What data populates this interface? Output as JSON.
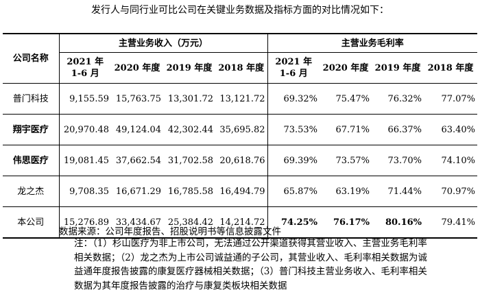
{
  "intro": "发行人与同行业可比公司在关键业务数据及指标方面的对比情况如下：",
  "table": {
    "company_header": "公司名称",
    "revenue_group": "主营业务收入（万元）",
    "margin_group": "主营业务毛利率",
    "periods": [
      "2021 年 1-6 月",
      "2020 年度",
      "2019 年度",
      "2018 年度"
    ],
    "rows": [
      {
        "name": "普门科技",
        "revenue": [
          "9,155.59",
          "15,763.75",
          "13,301.72",
          "13,121.72"
        ],
        "margin": [
          "69.32%",
          "75.47%",
          "76.32%",
          "77.07%"
        ]
      },
      {
        "name": "翔宇医疗",
        "revenue": [
          "20,970.48",
          "49,124.04",
          "42,302.44",
          "35,695.82"
        ],
        "margin": [
          "73.53%",
          "67.71%",
          "66.37%",
          "63.40%"
        ]
      },
      {
        "name": "伟思医疗",
        "revenue": [
          "19,081.45",
          "37,662.54",
          "31,702.58",
          "20,618.76"
        ],
        "margin": [
          "69.39%",
          "73.57%",
          "73.70%",
          "74.10%"
        ]
      },
      {
        "name": "龙之杰",
        "revenue": [
          "9,708.35",
          "16,671.29",
          "16,785.58",
          "16,494.79"
        ],
        "margin": [
          "65.87%",
          "63.19%",
          "71.44%",
          "70.97%"
        ]
      },
      {
        "name": "本公司",
        "revenue": [
          "15,276.89",
          "33,434.67",
          "25,384.42",
          "14,214.72"
        ],
        "margin": [
          "74.25%",
          "76.17%",
          "80.16%",
          "79.41%"
        ]
      }
    ]
  },
  "notes": {
    "source": "数据来源：公司年度报告、招股说明书等信息披露文件",
    "body": "注：（1）杉山医疗为非上市公司，无法通过公开渠道获得其营业收入、主营业务毛利率相关数据；（2）龙之杰为上市公司诚益通的子公司，其营业收入、毛利率相关数据为诚益通年度报告披露的康复医疗器械相关数据；（3）普门科技主营业务收入、毛利率相关数据为其年度报告披露的治疗与康复类板块相关数据"
  }
}
